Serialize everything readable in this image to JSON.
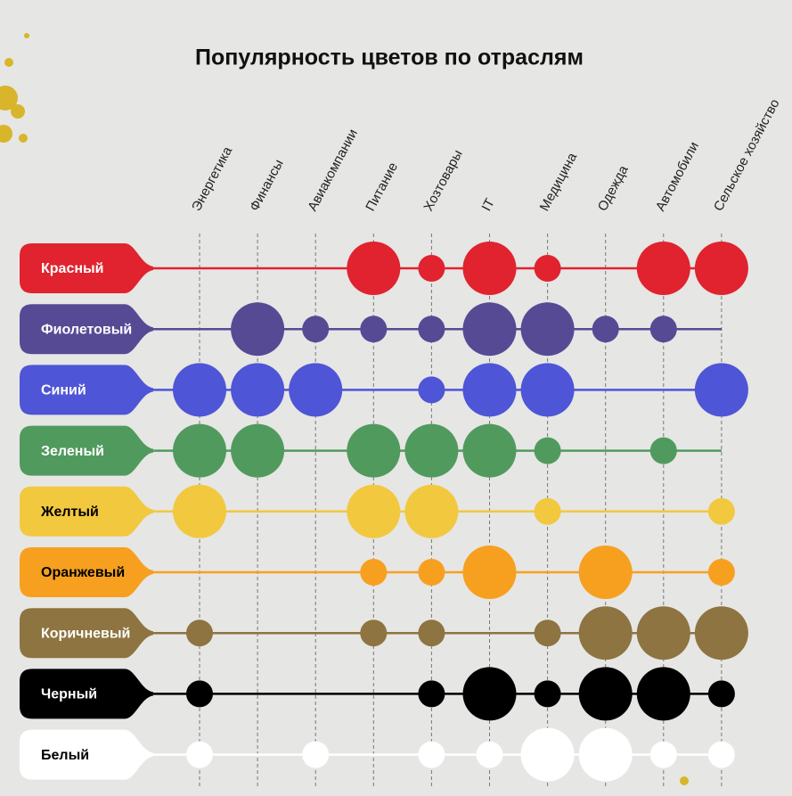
{
  "chart_data": {
    "type": "bubble-matrix",
    "title": "Популярность цветов по отраслям",
    "categories": [
      "Энергетика",
      "Финансы",
      "Авиакомпании",
      "Питание",
      "Хозтовары",
      "IT",
      "Медицина",
      "Одежда",
      "Автомобили",
      "Сельское хозяйство"
    ],
    "series": [
      {
        "name": "Красный",
        "color": "#e0232e",
        "values": [
          null,
          null,
          null,
          2,
          1,
          2,
          1,
          null,
          2,
          2
        ]
      },
      {
        "name": "Фиолетовый",
        "color": "#574a94",
        "values": [
          null,
          2,
          1,
          1,
          1,
          2,
          2,
          1,
          1,
          null
        ]
      },
      {
        "name": "Синий",
        "color": "#4e55d6",
        "values": [
          2,
          2,
          2,
          null,
          1,
          2,
          2,
          null,
          null,
          2
        ]
      },
      {
        "name": "Зеленый",
        "color": "#519a5e",
        "values": [
          2,
          2,
          null,
          2,
          2,
          2,
          1,
          null,
          1,
          null
        ]
      },
      {
        "name": "Желтый",
        "color": "#f2c83f",
        "values": [
          2,
          null,
          null,
          2,
          2,
          null,
          1,
          null,
          null,
          1
        ]
      },
      {
        "name": "Оранжевый",
        "color": "#f7a020",
        "values": [
          null,
          null,
          null,
          1,
          1,
          2,
          null,
          2,
          null,
          1
        ]
      },
      {
        "name": "Коричневый",
        "color": "#8d7440",
        "values": [
          1,
          null,
          null,
          1,
          1,
          null,
          1,
          2,
          2,
          2
        ]
      },
      {
        "name": "Черный",
        "color": "#000000",
        "values": [
          1,
          null,
          null,
          null,
          1,
          2,
          1,
          2,
          2,
          1
        ]
      },
      {
        "name": "Белый",
        "color": "#ffffff",
        "values": [
          1,
          null,
          1,
          null,
          1,
          1,
          2,
          2,
          1,
          1
        ]
      }
    ]
  }
}
